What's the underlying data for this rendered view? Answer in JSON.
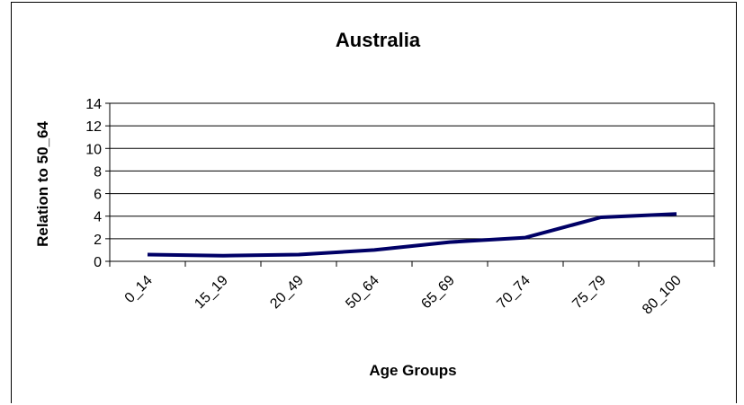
{
  "chart_data": {
    "type": "line",
    "title": "Australia",
    "xlabel": "Age Groups",
    "ylabel": "Relation to 50_64",
    "categories": [
      "0_14",
      "15_19",
      "20_49",
      "50_64",
      "65_69",
      "70_74",
      "75_79",
      "80_100"
    ],
    "series": [
      {
        "values": [
          0.6,
          0.5,
          0.6,
          1.0,
          1.7,
          2.1,
          3.9,
          4.2
        ]
      }
    ],
    "ylim": [
      0,
      14
    ],
    "yticks": [
      0,
      2,
      4,
      6,
      8,
      10,
      12,
      14
    ],
    "grid": true,
    "legend": "none",
    "colors": {
      "line": "#000066",
      "grid": "#000000",
      "background": "#ffffff"
    }
  }
}
